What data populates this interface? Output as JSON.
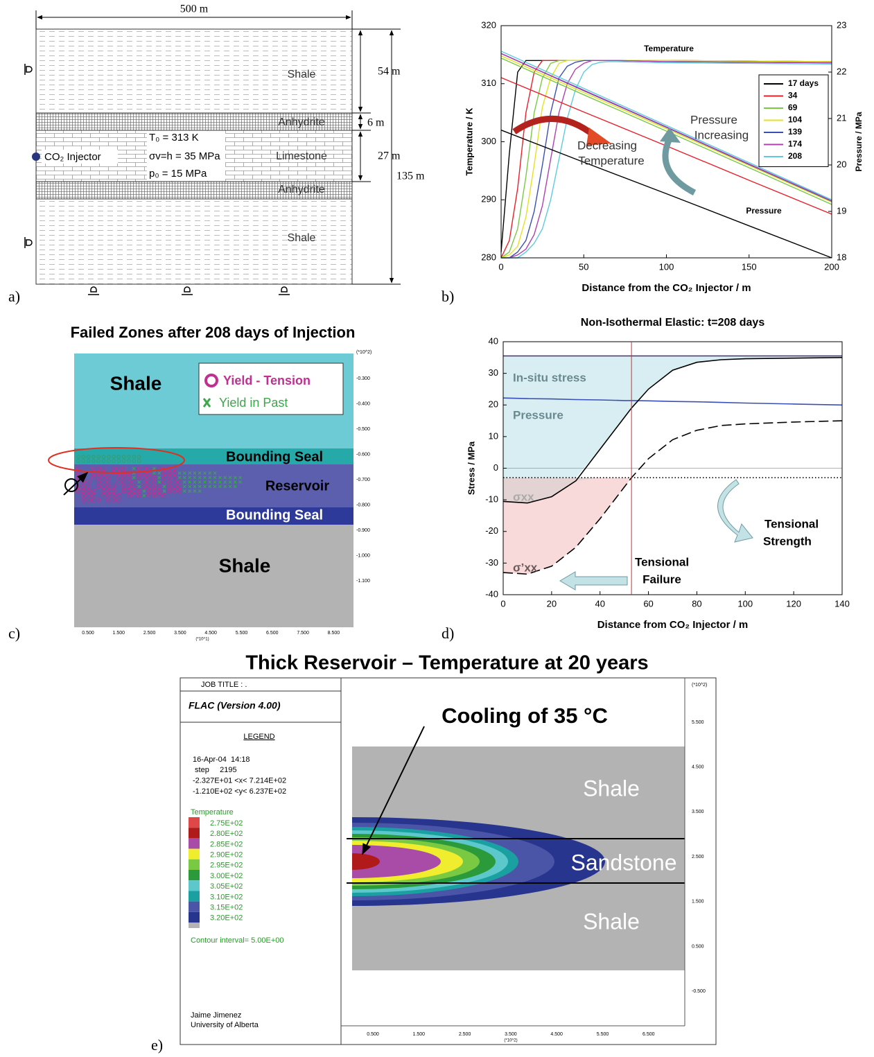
{
  "panel_labels": [
    "a)",
    "b)",
    "c)",
    "d)",
    "e)"
  ],
  "panel_a": {
    "width_label": "500 m",
    "layers": [
      "Shale",
      "Anhydrite",
      "Limestone",
      "Anhydrite",
      "Shale"
    ],
    "thickness_labels": [
      "54 m",
      "6 m",
      "27 m"
    ],
    "total_label": "135 m",
    "injector": "CO₂ Injector",
    "conditions": [
      "T₀ = 313 K",
      "σv=h = 35 MPa",
      "p₀ = 15 MPa"
    ]
  },
  "chart_data": [
    {
      "type": "line",
      "x": [
        0,
        5,
        10,
        15,
        20,
        25,
        30,
        35,
        40,
        45,
        50,
        55,
        60,
        65,
        70,
        100,
        150,
        200
      ],
      "xlim": [
        0,
        200
      ],
      "xticks": [
        0,
        50,
        100,
        150,
        200
      ],
      "ylim": [
        280,
        320
      ],
      "yticks": [
        280,
        290,
        300,
        310,
        320
      ],
      "y2lim": [
        18,
        23
      ],
      "y2ticks": [
        18,
        19,
        20,
        21,
        22,
        23
      ],
      "xlabel": "Distance from the CO₂ Injector / m",
      "ylabel": "Temperature / K",
      "y2label": "Pressure / MPa",
      "legend": "upper right",
      "annotations": {
        "temperature": "Temperature",
        "pressure": "Pressure",
        "decreasing": [
          "Decreasing",
          "Temperature"
        ],
        "increasing": [
          "Pressure",
          "Increasing"
        ]
      },
      "series": [
        {
          "name": "17 days",
          "color": "#000000",
          "values": [
            281,
            298,
            312,
            314,
            314,
            314,
            314,
            314,
            314,
            314,
            314,
            314,
            314,
            314,
            314,
            314,
            313.9,
            313.8
          ]
        },
        {
          "name": "34",
          "color": "#e8202a",
          "values": [
            280,
            283,
            292,
            305,
            312,
            314,
            314,
            314,
            314,
            314,
            314,
            314,
            314,
            314,
            314,
            314,
            313.9,
            313.8
          ]
        },
        {
          "name": "69",
          "color": "#7ac943",
          "values": [
            280,
            281,
            285,
            294,
            305,
            311,
            313.5,
            314,
            314,
            314,
            314,
            314,
            314,
            314,
            314,
            314,
            313.9,
            313.8
          ]
        },
        {
          "name": "104",
          "color": "#e6e020",
          "values": [
            280,
            280.5,
            282,
            287,
            296,
            306,
            311,
            313.5,
            314,
            314,
            314,
            314,
            314,
            314,
            314,
            314,
            313.9,
            313.8
          ]
        },
        {
          "name": "139",
          "color": "#3a4fb5",
          "values": [
            280,
            280,
            281,
            283,
            288,
            296,
            305,
            311,
            313,
            313.7,
            314,
            314,
            314,
            314,
            314,
            313.8,
            313.7,
            313.6
          ]
        },
        {
          "name": "174",
          "color": "#b040b0",
          "values": [
            280,
            280,
            280.5,
            281.5,
            284,
            289,
            297,
            305,
            310,
            312.5,
            313.5,
            314,
            314,
            314,
            314,
            313.8,
            313.7,
            313.6
          ]
        },
        {
          "name": "208",
          "color": "#5ccbe0",
          "values": [
            280,
            280,
            280,
            281,
            282.5,
            285,
            290,
            297,
            304,
            309,
            312,
            313.3,
            313.7,
            313.8,
            313.8,
            313.6,
            313.5,
            313.4
          ]
        },
        {
          "color": "#000000",
          "axis": "y2",
          "x": [
            0,
            50,
            100,
            150,
            200
          ],
          "values": [
            20.75,
            20.06,
            19.38,
            18.69,
            18.0
          ]
        },
        {
          "color": "#e8202a",
          "axis": "y2",
          "x": [
            0,
            50,
            100,
            150,
            200
          ],
          "values": [
            21.88,
            21.14,
            20.41,
            19.67,
            18.94
          ]
        },
        {
          "color": "#7ac943",
          "axis": "y2",
          "x": [
            0,
            50,
            100,
            150,
            200
          ],
          "values": [
            22.3,
            21.51,
            20.73,
            19.94,
            19.15
          ]
        },
        {
          "color": "#e6e020",
          "axis": "y2",
          "x": [
            0,
            50,
            100,
            150,
            200
          ],
          "values": [
            22.35,
            21.56,
            20.78,
            19.99,
            19.2
          ]
        },
        {
          "color": "#3a4fb5",
          "axis": "y2",
          "x": [
            0,
            50,
            100,
            150,
            200
          ],
          "values": [
            22.4,
            21.6,
            20.81,
            20.01,
            19.22
          ]
        },
        {
          "color": "#b040b0",
          "axis": "y2",
          "x": [
            0,
            50,
            100,
            150,
            200
          ],
          "values": [
            22.4,
            21.61,
            20.82,
            20.02,
            19.23
          ]
        },
        {
          "color": "#5ccbe0",
          "axis": "y2",
          "x": [
            0,
            50,
            100,
            150,
            200
          ],
          "values": [
            22.45,
            21.65,
            20.85,
            20.05,
            19.25
          ]
        }
      ]
    },
    {
      "type": "line",
      "title": "Non-Isothermal Elastic: t=208 days",
      "x": [
        0,
        10,
        20,
        30,
        40,
        50,
        53,
        60,
        70,
        80,
        90,
        100,
        120,
        140
      ],
      "xlim": [
        0,
        140
      ],
      "xticks": [
        0,
        20,
        40,
        60,
        80,
        100,
        120,
        140
      ],
      "ylim": [
        -40,
        40
      ],
      "yticks": [
        -40,
        -30,
        -20,
        -10,
        0,
        10,
        20,
        30,
        40
      ],
      "xlabel": "Distance from CO₂ Injector / m",
      "ylabel": "Stress / MPa",
      "failure_x": 53,
      "annotations": {
        "strength": [
          "Tensional",
          "Strength"
        ],
        "failure": [
          "Tensional",
          "Failure"
        ]
      },
      "series": [
        {
          "name": "In-situ stress",
          "color": "#4a2a7a",
          "values": [
            35.5,
            35.5,
            35.5,
            35.5,
            35.5,
            35.5,
            35.5,
            35.5,
            35.5,
            35.5,
            35.5,
            35.5,
            35.5,
            35.5
          ]
        },
        {
          "name": "Pressure",
          "color": "#3a4fb5",
          "values": [
            22.2,
            22.0,
            21.9,
            21.7,
            21.6,
            21.4,
            21.4,
            21.3,
            21.1,
            21.0,
            20.8,
            20.6,
            20.3,
            20.0
          ]
        },
        {
          "name": "σxx",
          "color": "#000000",
          "values": [
            -10.5,
            -11,
            -9,
            -4,
            6,
            16,
            19,
            25,
            31,
            33.5,
            34.3,
            34.6,
            34.8,
            35
          ]
        },
        {
          "name": "σ’xx",
          "color": "#000000",
          "dash": "dashed",
          "values": [
            -33,
            -33.5,
            -31,
            -25,
            -16,
            -6,
            -3,
            3,
            9,
            12,
            13.5,
            14,
            14.6,
            15
          ]
        },
        {
          "color": "#000000",
          "dash": "dotted",
          "values": [
            -3,
            -3,
            -3,
            -3,
            -3,
            -3,
            -3,
            -3,
            -3,
            -3,
            -3,
            -3,
            -3,
            -3
          ]
        }
      ]
    }
  ],
  "panel_c": {
    "title": "Failed Zones after 208 days of Injection",
    "layers": [
      "Shale",
      "Bounding Seal",
      "Reservoir",
      "Bounding Seal",
      "Shale"
    ],
    "legend": [
      "Yield - Tension",
      "Yield in Past"
    ],
    "y_scale": "(*10^2)",
    "yticks": [
      "-0.300",
      "-0.400",
      "-0.500",
      "-0.600",
      "-0.700",
      "-0.800",
      "-0.900",
      "-1.000",
      "-1.100"
    ],
    "x_scale": "(*10^1)",
    "xticks": [
      "0.500",
      "1.500",
      "2.500",
      "3.500",
      "4.500",
      "5.500",
      "6.500",
      "7.500",
      "8.500"
    ]
  },
  "panel_e": {
    "title": "Thick Reservoir – Temperature at 20 years",
    "job_title": "JOB TITLE : .",
    "program": "FLAC (Version 4.00)",
    "legend_heading": "LEGEND",
    "info": [
      "16-Apr-04  14:18",
      " step     2195",
      "-2.327E+01 <x< 7.214E+02",
      "-1.210E+02 <y< 6.237E+02"
    ],
    "contour_name": "Temperature",
    "contours": [
      {
        "label": "2.75E+02",
        "color": "#e04848"
      },
      {
        "label": "2.80E+02",
        "color": "#b01a1a"
      },
      {
        "label": "2.85E+02",
        "color": "#a84ca8"
      },
      {
        "label": "2.90E+02",
        "color": "#f0ec2e"
      },
      {
        "label": "2.95E+02",
        "color": "#7ac943"
      },
      {
        "label": "3.00E+02",
        "color": "#2a9a3a"
      },
      {
        "label": "3.05E+02",
        "color": "#5cc8cc"
      },
      {
        "label": "3.10E+02",
        "color": "#1aa0a0"
      },
      {
        "label": "3.15E+02",
        "color": "#4a55a8"
      },
      {
        "label": "3.20E+02",
        "color": "#27358f"
      }
    ],
    "overflow_color": "#b3b3b3",
    "contour_interval": "Contour interval= 5.00E+00",
    "author": [
      "Jaime Jimenez",
      "University of Alberta"
    ],
    "annotation": "Cooling of 35 °C",
    "layers": [
      "Shale",
      "Sandstone",
      "Shale"
    ],
    "y_scale": "(*10^2)",
    "yticks": [
      "5.500",
      "4.500",
      "3.500",
      "2.500",
      "1.500",
      "0.500",
      "-0.500"
    ],
    "x_scale": "(*10^2)",
    "xticks": [
      "0.500",
      "1.500",
      "2.500",
      "3.500",
      "4.500",
      "5.500",
      "6.500"
    ]
  }
}
